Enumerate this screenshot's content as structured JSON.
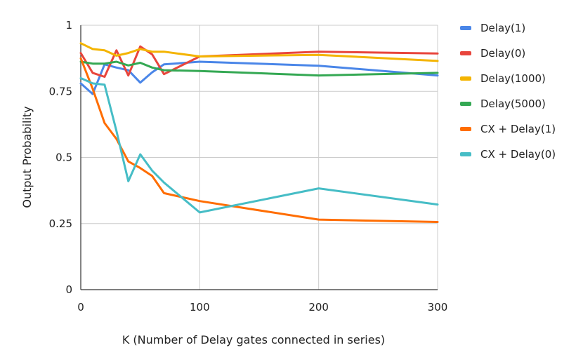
{
  "chart_data": {
    "type": "line",
    "title": "",
    "xlabel": "K (Number of Delay gates connected in series)",
    "ylabel": "Output Probability",
    "xlim": [
      0,
      300
    ],
    "ylim": [
      0,
      1
    ],
    "xticks": [
      0,
      100,
      200,
      300
    ],
    "xtick_labels": [
      "0",
      "100",
      "200",
      "300"
    ],
    "yticks": [
      0,
      0.25,
      0.5,
      0.75,
      1
    ],
    "ytick_labels": [
      "0",
      "0.25",
      "0.5",
      "0.75",
      "1"
    ],
    "grid": true,
    "legend_position": "right",
    "series": [
      {
        "name": "Delay(1)",
        "color": "#4a86e8",
        "points": [
          [
            0,
            0.78
          ],
          [
            10,
            0.74
          ],
          [
            20,
            0.852
          ],
          [
            30,
            0.84
          ],
          [
            40,
            0.83
          ],
          [
            50,
            0.783
          ],
          [
            60,
            0.822
          ],
          [
            70,
            0.852
          ],
          [
            100,
            0.862
          ],
          [
            200,
            0.847
          ],
          [
            300,
            0.81
          ]
        ]
      },
      {
        "name": "Delay(0)",
        "color": "#e8453c",
        "points": [
          [
            0,
            0.895
          ],
          [
            10,
            0.82
          ],
          [
            20,
            0.805
          ],
          [
            30,
            0.905
          ],
          [
            40,
            0.81
          ],
          [
            50,
            0.92
          ],
          [
            60,
            0.89
          ],
          [
            70,
            0.815
          ],
          [
            100,
            0.882
          ],
          [
            200,
            0.9
          ],
          [
            300,
            0.893
          ]
        ]
      },
      {
        "name": "Delay(1000)",
        "color": "#f4b400",
        "points": [
          [
            0,
            0.932
          ],
          [
            10,
            0.91
          ],
          [
            20,
            0.905
          ],
          [
            30,
            0.885
          ],
          [
            40,
            0.895
          ],
          [
            50,
            0.91
          ],
          [
            60,
            0.9
          ],
          [
            70,
            0.9
          ],
          [
            100,
            0.882
          ],
          [
            200,
            0.888
          ],
          [
            300,
            0.865
          ]
        ]
      },
      {
        "name": "Delay(5000)",
        "color": "#34a853",
        "points": [
          [
            0,
            0.862
          ],
          [
            10,
            0.855
          ],
          [
            20,
            0.855
          ],
          [
            30,
            0.862
          ],
          [
            40,
            0.848
          ],
          [
            50,
            0.858
          ],
          [
            60,
            0.84
          ],
          [
            70,
            0.83
          ],
          [
            100,
            0.827
          ],
          [
            200,
            0.81
          ],
          [
            300,
            0.82
          ]
        ]
      },
      {
        "name": "CX + Delay(1)",
        "color": "#ff6d01",
        "points": [
          [
            0,
            0.875
          ],
          [
            10,
            0.76
          ],
          [
            20,
            0.63
          ],
          [
            30,
            0.57
          ],
          [
            40,
            0.485
          ],
          [
            50,
            0.46
          ],
          [
            60,
            0.43
          ],
          [
            70,
            0.365
          ],
          [
            100,
            0.335
          ],
          [
            200,
            0.265
          ],
          [
            300,
            0.256
          ]
        ]
      },
      {
        "name": "CX + Delay(0)",
        "color": "#46bdc6",
        "points": [
          [
            0,
            0.8
          ],
          [
            10,
            0.78
          ],
          [
            20,
            0.775
          ],
          [
            30,
            0.6
          ],
          [
            40,
            0.41
          ],
          [
            50,
            0.512
          ],
          [
            60,
            0.45
          ],
          [
            70,
            0.405
          ],
          [
            100,
            0.292
          ],
          [
            200,
            0.383
          ],
          [
            300,
            0.322
          ]
        ]
      }
    ]
  }
}
